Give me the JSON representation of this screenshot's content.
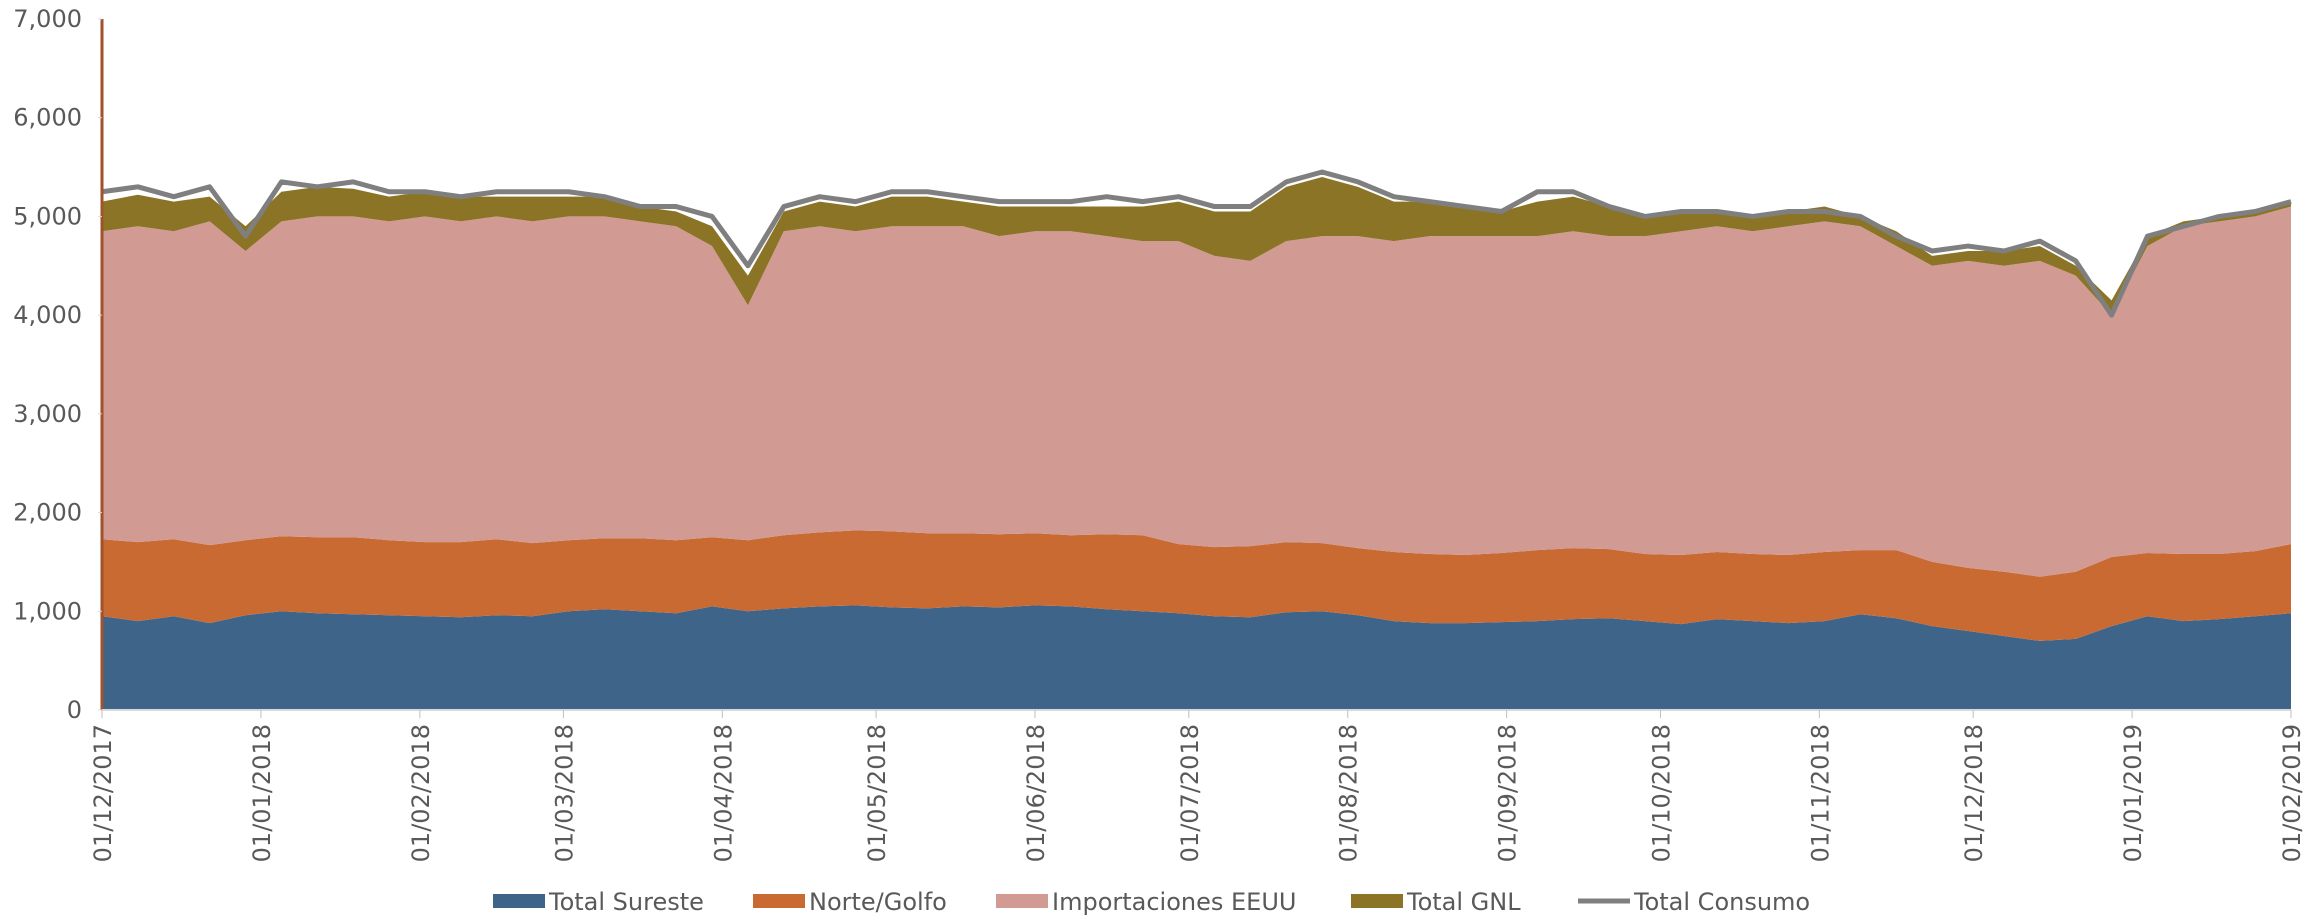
{
  "chart_data": {
    "type": "stacked-area",
    "x": [
      "01/12/2017",
      "08/12/2017",
      "15/12/2017",
      "22/12/2017",
      "29/12/2017",
      "05/01/2018",
      "12/01/2018",
      "19/01/2018",
      "26/01/2018",
      "02/02/2018",
      "09/02/2018",
      "16/02/2018",
      "23/02/2018",
      "02/03/2018",
      "09/03/2018",
      "16/03/2018",
      "23/03/2018",
      "30/03/2018",
      "06/04/2018",
      "13/04/2018",
      "20/04/2018",
      "27/04/2018",
      "04/05/2018",
      "11/05/2018",
      "18/05/2018",
      "25/05/2018",
      "01/06/2018",
      "08/06/2018",
      "15/06/2018",
      "22/06/2018",
      "29/06/2018",
      "06/07/2018",
      "13/07/2018",
      "20/07/2018",
      "27/07/2018",
      "03/08/2018",
      "10/08/2018",
      "17/08/2018",
      "24/08/2018",
      "31/08/2018",
      "07/09/2018",
      "14/09/2018",
      "21/09/2018",
      "28/09/2018",
      "05/10/2018",
      "12/10/2018",
      "19/10/2018",
      "26/10/2018",
      "02/11/2018",
      "09/11/2018",
      "16/11/2018",
      "23/11/2018",
      "30/11/2018",
      "07/12/2018",
      "14/12/2018",
      "21/12/2018",
      "28/12/2018",
      "04/01/2019",
      "11/01/2019",
      "18/01/2019",
      "25/01/2019",
      "01/02/2019"
    ],
    "series": [
      {
        "name": "Total Sureste",
        "color": "#3f6489",
        "stack": true,
        "values": [
          950,
          900,
          950,
          880,
          960,
          1000,
          980,
          970,
          960,
          950,
          940,
          960,
          950,
          1000,
          1020,
          1000,
          980,
          1050,
          1000,
          1030,
          1050,
          1060,
          1040,
          1030,
          1050,
          1040,
          1060,
          1050,
          1020,
          1000,
          980,
          950,
          940,
          990,
          1000,
          960,
          900,
          880,
          880,
          890,
          900,
          920,
          930,
          900,
          870,
          920,
          900,
          880,
          900,
          970,
          930,
          850,
          800,
          750,
          700,
          720,
          850,
          950,
          900,
          920,
          950,
          980
        ]
      },
      {
        "name": "Norte/Golfo",
        "color": "#c96a32",
        "stack": true,
        "values": [
          780,
          800,
          780,
          790,
          760,
          760,
          770,
          780,
          760,
          750,
          760,
          770,
          740,
          720,
          720,
          740,
          740,
          700,
          720,
          740,
          750,
          760,
          770,
          760,
          740,
          740,
          730,
          720,
          760,
          770,
          700,
          700,
          720,
          710,
          690,
          680,
          700,
          700,
          690,
          700,
          720,
          720,
          700,
          680,
          700,
          680,
          680,
          690,
          700,
          650,
          690,
          650,
          640,
          650,
          650,
          680,
          700,
          640,
          680,
          660,
          660,
          700
        ]
      },
      {
        "name": "Importaciones EEUU",
        "color": "#d19a92",
        "stack": true,
        "values": [
          3120,
          3200,
          3120,
          3280,
          2930,
          3190,
          3250,
          3250,
          3230,
          3300,
          3250,
          3270,
          3260,
          3280,
          3260,
          3210,
          3180,
          2950,
          2380,
          3080,
          3100,
          3030,
          3090,
          3110,
          3110,
          3020,
          3060,
          3080,
          3020,
          2980,
          3070,
          2950,
          2890,
          3050,
          3110,
          3160,
          3150,
          3220,
          3230,
          3210,
          3180,
          3210,
          3170,
          3220,
          3280,
          3300,
          3270,
          3330,
          3350,
          3280,
          3080,
          3000,
          3110,
          3100,
          3200,
          3000,
          2450,
          3110,
          3320,
          3370,
          3390,
          3420
        ]
      },
      {
        "name": "Total GNL",
        "color": "#8b7425",
        "stack": true,
        "values": [
          300,
          320,
          300,
          250,
          250,
          300,
          300,
          280,
          250,
          250,
          250,
          200,
          250,
          200,
          200,
          150,
          150,
          200,
          300,
          200,
          250,
          250,
          300,
          300,
          250,
          300,
          250,
          250,
          300,
          350,
          400,
          450,
          500,
          550,
          600,
          500,
          400,
          350,
          300,
          250,
          350,
          350,
          300,
          200,
          200,
          150,
          150,
          150,
          150,
          100,
          150,
          100,
          100,
          150,
          150,
          100,
          150,
          100,
          50,
          50,
          50,
          50
        ]
      },
      {
        "name": "Total Consumo",
        "color": "#7f7f7f",
        "stack": false,
        "values": [
          5250,
          5300,
          5200,
          5300,
          4800,
          5350,
          5300,
          5350,
          5250,
          5250,
          5200,
          5250,
          5250,
          5250,
          5200,
          5100,
          5100,
          5000,
          4500,
          5100,
          5200,
          5150,
          5250,
          5250,
          5200,
          5150,
          5150,
          5150,
          5200,
          5150,
          5200,
          5100,
          5100,
          5350,
          5450,
          5350,
          5200,
          5150,
          5100,
          5050,
          5250,
          5250,
          5100,
          5000,
          5050,
          5050,
          5000,
          5050,
          5050,
          5000,
          4800,
          4650,
          4700,
          4650,
          4750,
          4550,
          4000,
          4800,
          4900,
          5000,
          5050,
          5150
        ]
      }
    ],
    "xlim": [
      "01/12/2017",
      "01/02/2019"
    ],
    "xticks": [
      "01/12/2017",
      "01/01/2018",
      "01/02/2018",
      "01/03/2018",
      "01/04/2018",
      "01/05/2018",
      "01/06/2018",
      "01/07/2018",
      "01/08/2018",
      "01/09/2018",
      "01/10/2018",
      "01/11/2018",
      "01/12/2018",
      "01/01/2019",
      "01/02/2019"
    ],
    "ylim": [
      0,
      7000
    ],
    "yticks": [
      0,
      {
        "value": 1000,
        "label": "1,000"
      },
      {
        "value": 2000,
        "label": "2,000"
      },
      {
        "value": 3000,
        "label": "3,000"
      },
      {
        "value": 4000,
        "label": "4,000"
      },
      {
        "value": 5000,
        "label": "5,000"
      },
      {
        "value": 6000,
        "label": "6,000"
      },
      {
        "value": 7000,
        "label": "7,000"
      }
    ],
    "legend": "bottom"
  }
}
